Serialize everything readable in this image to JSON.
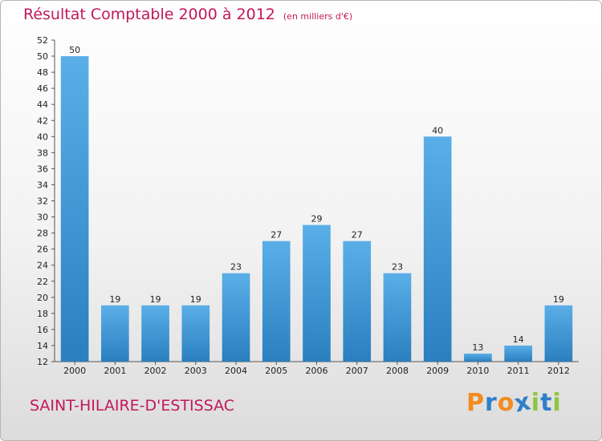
{
  "header": {
    "title": "Résultat Comptable 2000 à 2012",
    "unit": "(en milliers d'€)"
  },
  "footer": {
    "location": "SAINT-HILAIRE-D'ESTISSAC",
    "logo_letters": [
      "P",
      "r",
      "o",
      "x",
      "i",
      "t",
      "i"
    ],
    "logo_colors": [
      "#f28c1e",
      "#2e7fc9",
      "#f28c1e",
      "#2e7fc9",
      "#8dc63f",
      "#2e7fc9",
      "#8dc63f"
    ]
  },
  "colors": {
    "bar_light": "#5aafe8",
    "bar_dark": "#2a7fbf",
    "title": "#c2185b"
  },
  "chart_data": {
    "type": "bar",
    "categories": [
      "2000",
      "2001",
      "2002",
      "2003",
      "2004",
      "2005",
      "2006",
      "2007",
      "2008",
      "2009",
      "2010",
      "2011",
      "2012"
    ],
    "values": [
      50,
      19,
      19,
      19,
      23,
      27,
      29,
      27,
      23,
      40,
      13,
      14,
      19
    ],
    "ylim": [
      12,
      52
    ],
    "yticks": [
      12,
      14,
      16,
      18,
      20,
      22,
      24,
      26,
      28,
      30,
      32,
      34,
      36,
      38,
      40,
      42,
      44,
      46,
      48,
      50,
      52
    ],
    "grid": false,
    "legend": "none"
  }
}
